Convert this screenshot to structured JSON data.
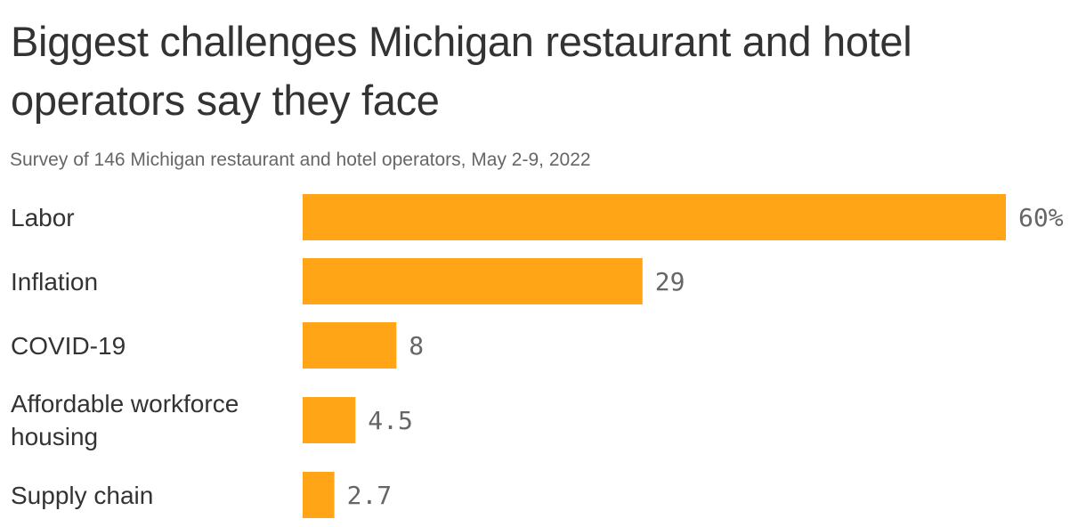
{
  "title": "Biggest challenges Michigan restaurant and hotel operators say they face",
  "subtitle": "Survey of 146 Michigan restaurant and hotel operators, May 2-9, 2022",
  "colors": {
    "bar": "#FFA516",
    "text": "#333333",
    "muted": "#666666"
  },
  "chart_data": {
    "type": "bar",
    "orientation": "horizontal",
    "categories": [
      "Labor",
      "Inflation",
      "COVID-19",
      "Affordable workforce housing",
      "Supply chain"
    ],
    "values": [
      60,
      29,
      8,
      4.5,
      2.7
    ],
    "value_labels": [
      "60%",
      "29",
      "8",
      "4.5",
      "2.7"
    ],
    "value_unit": "%",
    "xlim": [
      0,
      60
    ],
    "grid": false,
    "legend": "none"
  }
}
